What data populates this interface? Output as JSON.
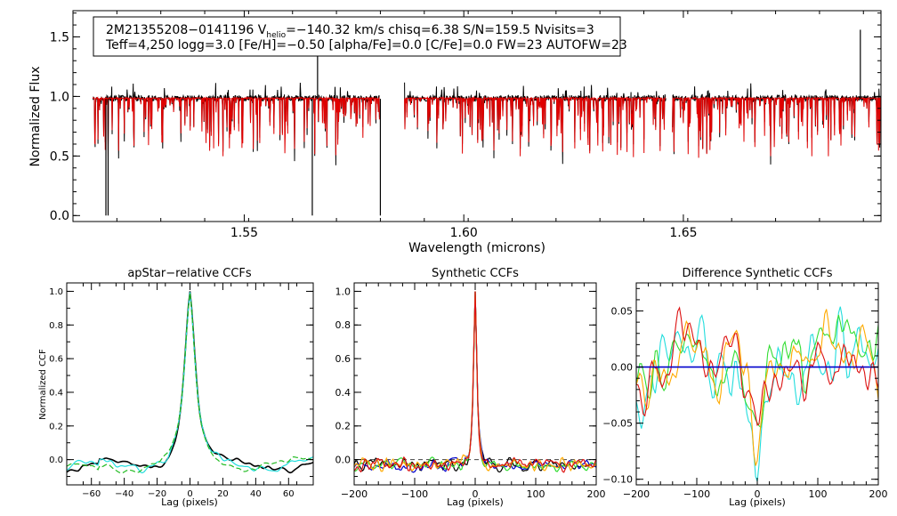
{
  "chart_data": [
    {
      "type": "line",
      "xlabel": "Wavelength (microns)",
      "ylabel": "Normalized Flux",
      "xlim": [
        1.511,
        1.695
      ],
      "ylim": [
        -0.05,
        1.72
      ],
      "xticks": [
        1.55,
        1.6,
        1.65
      ],
      "xtick_labels": [
        "1.55",
        "1.60",
        "1.65"
      ],
      "yticks": [
        0.0,
        0.5,
        1.0,
        1.5
      ],
      "ytick_labels": [
        "0.0",
        "0.5",
        "1.0",
        "1.5"
      ],
      "annotation": {
        "line1_a": "2M21355208−0141196  V",
        "line1_sub": "helio",
        "line1_b": "=−140.32 km/s  chisq=6.38  S/N=159.5  Nvisits=3",
        "line2": "Teff=4,250 logg=3.0 [Fe/H]=−0.50 [alpha/Fe]=0.0 [C/Fe]=0.0 FW=23 AUTOFW=23"
      },
      "segments": [
        [
          1.5155,
          1.5808
        ],
        [
          1.5865,
          1.646
        ],
        [
          1.6475,
          1.695
        ]
      ],
      "series": [
        {
          "name": "observed",
          "color": "#000000"
        },
        {
          "name": "model",
          "color": "#e00000"
        }
      ],
      "strong_lines": [
        {
          "x": 1.5185,
          "y": 0.0
        },
        {
          "x": 1.519,
          "y": 0.0
        },
        {
          "x": 1.5655,
          "y": 0.0
        },
        {
          "x": 1.581,
          "y": 0.0
        },
        {
          "x": 1.5667,
          "y": 1.34
        },
        {
          "x": 1.6903,
          "y": 1.56
        }
      ]
    },
    {
      "type": "line",
      "title": "apStar−relative CCFs",
      "xlabel": "Lag (pixels)",
      "ylabel": "Normalized CCF",
      "xlim": [
        -75,
        75
      ],
      "ylim": [
        -0.15,
        1.05
      ],
      "xticks": [
        -60,
        -40,
        -20,
        0,
        20,
        40,
        60
      ],
      "xtick_labels": [
        "−60",
        "−40",
        "−20",
        "0",
        "20",
        "40",
        "60"
      ],
      "yticks": [
        0.0,
        0.2,
        0.4,
        0.6,
        0.8,
        1.0
      ],
      "ytick_labels": [
        "0.0",
        "0.2",
        "0.4",
        "0.6",
        "0.8",
        "1.0"
      ],
      "series": [
        {
          "name": "black",
          "color": "#000000"
        },
        {
          "name": "cyan",
          "color": "#22dddd"
        },
        {
          "name": "green",
          "color": "#22bb22"
        }
      ],
      "peak": {
        "x": 0,
        "y": 1.0
      }
    },
    {
      "type": "line",
      "title": "Synthetic CCFs",
      "xlabel": "Lag (pixels)",
      "xlim": [
        -200,
        200
      ],
      "ylim": [
        -0.15,
        1.05
      ],
      "xticks": [
        -200,
        -100,
        0,
        100,
        200
      ],
      "xtick_labels": [
        "−200",
        "−100",
        "0",
        "100",
        "200"
      ],
      "yticks": [
        0.0,
        0.2,
        0.4,
        0.6,
        0.8,
        1.0
      ],
      "ytick_labels": [
        "0.0",
        "0.2",
        "0.4",
        "0.6",
        "0.8",
        "1.0"
      ],
      "series": [
        {
          "name": "black",
          "color": "#000000"
        },
        {
          "name": "blue",
          "color": "#0000cc"
        },
        {
          "name": "green",
          "color": "#33dd33"
        },
        {
          "name": "orange",
          "color": "#ffaa00"
        },
        {
          "name": "red",
          "color": "#dd1111"
        }
      ],
      "peak": {
        "x": 0,
        "y": 1.0
      }
    },
    {
      "type": "line",
      "title": "Difference Synthetic CCFs",
      "xlabel": "Lag (pixels)",
      "xlim": [
        -200,
        200
      ],
      "ylim": [
        -0.105,
        0.075
      ],
      "xticks": [
        -200,
        -100,
        0,
        100,
        200
      ],
      "xtick_labels": [
        "−200",
        "−100",
        "0",
        "100",
        "200"
      ],
      "yticks": [
        -0.1,
        -0.05,
        0.0,
        0.05
      ],
      "ytick_labels": [
        "−0.10",
        "−0.05",
        "0.00",
        "0.05"
      ],
      "series": [
        {
          "name": "cyan",
          "color": "#22dddd"
        },
        {
          "name": "green",
          "color": "#33dd33"
        },
        {
          "name": "orange",
          "color": "#ffaa00"
        },
        {
          "name": "red",
          "color": "#dd1111"
        },
        {
          "name": "blue zero",
          "color": "#0000cc"
        }
      ]
    }
  ]
}
